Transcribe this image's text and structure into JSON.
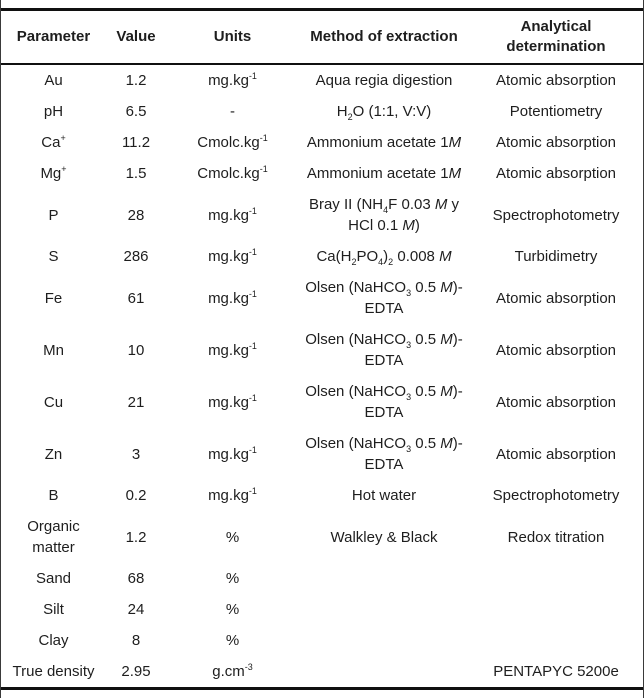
{
  "page": {
    "background": "#ffffff",
    "rule_color": "#101010",
    "edge_line_color": "#3a3a3a",
    "text_color": "#1e1e1e"
  },
  "table": {
    "headers": {
      "parameter": "Parameter",
      "value": "Value",
      "units": "Units",
      "method": "Method of extraction",
      "determination": "Analytical determination"
    },
    "columns": [
      "parameter",
      "value",
      "units",
      "method",
      "determination"
    ],
    "rows": [
      {
        "parameter": "Au",
        "value": "1.2",
        "units": "mg.kg<sup>-1</sup>",
        "method": "Aqua regia digestion",
        "determination": "Atomic absorption"
      },
      {
        "parameter": "pH",
        "value": "6.5",
        "units": "-",
        "method": "H<sub>2</sub>O (1:1, V:V)",
        "determination": "Potentiometry"
      },
      {
        "parameter": "Ca<sup>+</sup>",
        "value": "11.2",
        "units": "Cmolc.kg<sup>-1</sup>",
        "method": "Ammonium acetate 1<i>M</i>",
        "determination": "Atomic absorption"
      },
      {
        "parameter": "Mg<sup>+</sup>",
        "value": "1.5",
        "units": "Cmolc.kg<sup>-1</sup>",
        "method": "Ammonium acetate 1<i>M</i>",
        "determination": "Atomic absorption"
      },
      {
        "parameter": "P",
        "value": "28",
        "units": "mg.kg<sup>-1</sup>",
        "method": "Bray II (NH<sub>4</sub>F 0.03 <i>M</i> y HCl 0.1 <i>M</i>)",
        "determination": "Spectrophotometry"
      },
      {
        "parameter": "S",
        "value": "286",
        "units": "mg.kg<sup>-1</sup>",
        "method": "Ca(H<sub>2</sub>PO<sub>4</sub>)<sub>2</sub> 0.008 <i>M</i>",
        "determination": "Turbidimetry"
      },
      {
        "parameter": "Fe",
        "value": "61",
        "units": "mg.kg<sup>-1</sup>",
        "method": "Olsen (NaHCO<sub>3</sub> 0.5 <i>M</i>)-EDTA",
        "determination": "Atomic absorption"
      },
      {
        "parameter": "Mn",
        "value": "10",
        "units": "mg.kg<sup>-1</sup>",
        "method": "Olsen (NaHCO<sub>3</sub> 0.5 <i>M</i>)-EDTA",
        "determination": "Atomic absorption"
      },
      {
        "parameter": "Cu",
        "value": "21",
        "units": "mg.kg<sup>-1</sup>",
        "method": "Olsen (NaHCO<sub>3</sub> 0.5 <i>M</i>)-EDTA",
        "determination": "Atomic absorption"
      },
      {
        "parameter": "Zn",
        "value": "3",
        "units": "mg.kg<sup>-1</sup>",
        "method": "Olsen (NaHCO<sub>3</sub> 0.5 <i>M</i>)-EDTA",
        "determination": "Atomic absorption"
      },
      {
        "parameter": "B",
        "value": "0.2",
        "units": "mg.kg<sup>-1</sup>",
        "method": "Hot water",
        "determination": "Spectrophotometry"
      },
      {
        "parameter": "Organic matter",
        "value": "1.2",
        "units": "%",
        "method": "Walkley & Black",
        "determination": "Redox titration"
      },
      {
        "parameter": "Sand",
        "value": "68",
        "units": "%",
        "method": "",
        "determination": ""
      },
      {
        "parameter": "Silt",
        "value": "24",
        "units": "%",
        "method": "",
        "determination": ""
      },
      {
        "parameter": "Clay",
        "value": "8",
        "units": "%",
        "method": "",
        "determination": ""
      },
      {
        "parameter": "True density",
        "value": "2.95",
        "units": "g.cm<sup>-3</sup>",
        "method": "",
        "determination": "PENTAPYC 5200e"
      }
    ]
  }
}
